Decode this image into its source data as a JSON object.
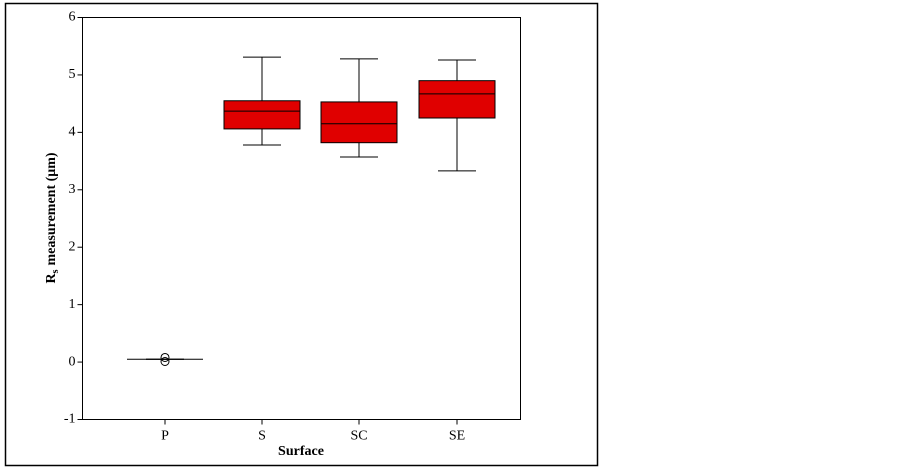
{
  "chart_data": {
    "type": "box",
    "x_label": "Surface",
    "y_label": {
      "base": "R",
      "subscript": "s",
      "text": "measurement (μm)"
    },
    "categories": [
      "P",
      "S",
      "SC",
      "SE"
    ],
    "boxes": [
      {
        "whisker_low": 0.05,
        "q1": 0.05,
        "median": 0.05,
        "q3": 0.05,
        "whisker_high": 0.05,
        "outliers": [
          0.08,
          0.01
        ]
      },
      {
        "whisker_low": 3.78,
        "q1": 4.06,
        "median": 4.37,
        "q3": 4.55,
        "whisker_high": 5.31,
        "outliers": []
      },
      {
        "whisker_low": 3.57,
        "q1": 3.82,
        "median": 4.15,
        "q3": 4.53,
        "whisker_high": 5.28,
        "outliers": []
      },
      {
        "whisker_low": 3.33,
        "q1": 4.25,
        "median": 4.67,
        "q3": 4.9,
        "whisker_high": 5.26,
        "outliers": []
      }
    ],
    "color": "#e00000",
    "ylim": [
      -1,
      6
    ],
    "yticks": [
      -1,
      0,
      1,
      2,
      3,
      4,
      5,
      6
    ]
  }
}
